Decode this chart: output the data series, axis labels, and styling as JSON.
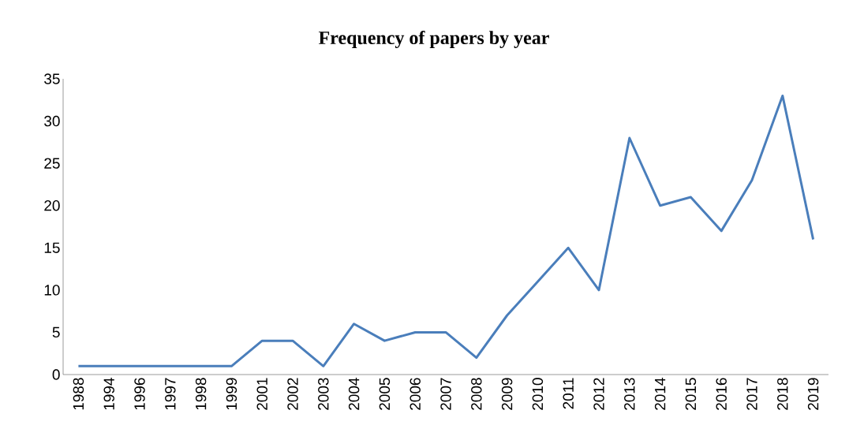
{
  "chart_data": {
    "type": "line",
    "title": "Frequency of papers by year",
    "categories": [
      "1988",
      "1994",
      "1996",
      "1997",
      "1998",
      "1999",
      "2001",
      "2002",
      "2003",
      "2004",
      "2005",
      "2006",
      "2007",
      "2008",
      "2009",
      "2010",
      "2011",
      "2012",
      "2013",
      "2014",
      "2015",
      "2016",
      "2017",
      "2018",
      "2019"
    ],
    "series": [
      {
        "color": "#4a7ebb",
        "values": [
          1,
          1,
          1,
          1,
          1,
          1,
          4,
          4,
          1,
          6,
          4,
          5,
          5,
          2,
          7,
          11,
          15,
          10,
          28,
          20,
          21,
          17,
          23,
          33,
          16
        ]
      }
    ],
    "ylim": [
      0,
      35
    ],
    "yticks": [
      0,
      5,
      10,
      15,
      20,
      25,
      30,
      35
    ],
    "grid": false,
    "marker": "none",
    "line_style": "solid"
  }
}
